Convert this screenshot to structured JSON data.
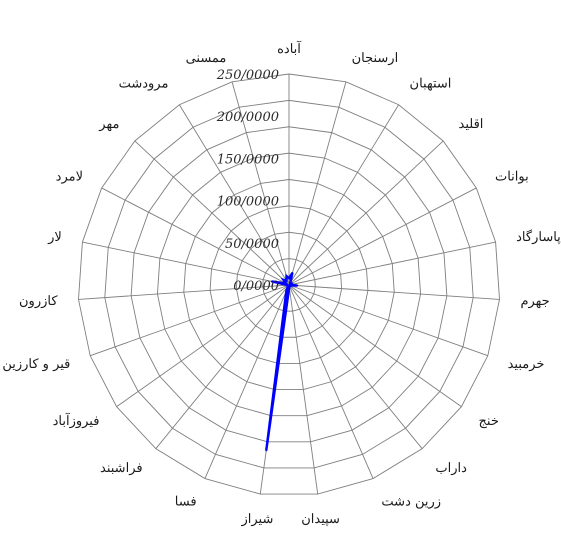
{
  "chart_data": {
    "type": "radar",
    "categories": [
      "آباده",
      "ارسنجان",
      "استهبان",
      "اقلید",
      "بوانات",
      "پاسارگاد",
      "جهرم",
      "خرمبید",
      "خنج",
      "داراب",
      "زرین دشت",
      "سپیدان",
      "شیراز",
      "فسا",
      "فراشبند",
      "فیروزآباد",
      "قیر و کارزین",
      "کازرون",
      "لار",
      "لامرد",
      "مهر",
      "مرودشت",
      "ممسنی"
    ],
    "series": [
      {
        "values": [
          8.0,
          15.0,
          3.0,
          2.0,
          4.5,
          2.0,
          10.0,
          2.0,
          2.0,
          1.5,
          2.0,
          2.5,
          198.0,
          8.0,
          2.0,
          2.0,
          1.5,
          2.0,
          21.0,
          4.0,
          9.0,
          6.0,
          11.0
        ],
        "color": "#0000ff"
      }
    ],
    "rlim": [
      0,
      250
    ],
    "tick_values": [
      0,
      50,
      100,
      150,
      200,
      250
    ],
    "tick_labels": [
      "0/0000",
      "50/0000",
      "100/0000",
      "150/0000",
      "200/0000",
      "250/0000"
    ],
    "grid": true,
    "legend": "none",
    "colors": {
      "series": "#0000ff",
      "grid": "#7f7f7f"
    }
  }
}
